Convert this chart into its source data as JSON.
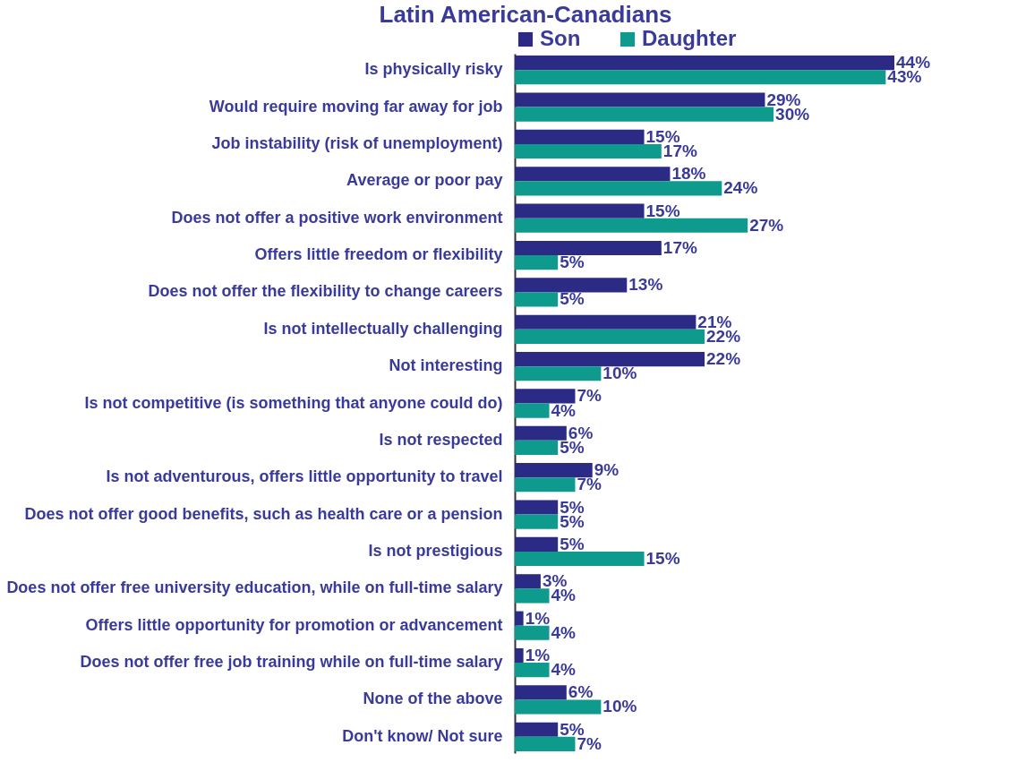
{
  "chart_data": {
    "type": "bar",
    "orientation": "horizontal",
    "title": "Latin American-Canadians",
    "legend": "top",
    "categories": [
      "Is physically risky",
      "Would require moving far away for job",
      "Job instability (risk of unemployment)",
      "Average or poor pay",
      "Does not offer a positive work environment",
      "Offers little freedom or flexibility",
      "Does not offer the flexibility to change careers",
      "Is not intellectually challenging",
      "Not interesting",
      "Is not competitive (is something that anyone could do)",
      "Is not respected",
      "Is not adventurous, offers little opportunity to travel",
      "Does not offer good benefits, such as health care or a pension",
      "Is not prestigious",
      "Does not offer free university education, while on full-time salary",
      "Offers little opportunity for promotion or advancement",
      "Does not offer free job training while on full-time salary",
      "None of the above",
      "Don't know/ Not sure"
    ],
    "series": [
      {
        "name": "Son",
        "color": "#2b2b86",
        "values": [
          44,
          29,
          15,
          18,
          15,
          17,
          13,
          21,
          22,
          7,
          6,
          9,
          5,
          5,
          3,
          1,
          1,
          6,
          5
        ],
        "value_labels": [
          "44%",
          "29%",
          "15%",
          "18%",
          "15%",
          "17%",
          "13%",
          "21%",
          "22%",
          "7%",
          "6%",
          "9%",
          "5%",
          "5%",
          "3%",
          "1%",
          "1%",
          "6%",
          "5%"
        ]
      },
      {
        "name": "Daughter",
        "color": "#0f9a8e",
        "values": [
          43,
          30,
          17,
          24,
          27,
          5,
          5,
          22,
          10,
          4,
          5,
          7,
          5,
          15,
          4,
          4,
          4,
          10,
          7
        ],
        "value_labels": [
          "43%",
          "30%",
          "17%",
          "24%",
          "27%",
          "5%",
          "5%",
          "22%",
          "10%",
          "4%",
          "5%",
          "7%",
          "5%",
          "15%",
          "4%",
          "4%",
          "4%",
          "10%",
          "7%"
        ]
      }
    ]
  }
}
